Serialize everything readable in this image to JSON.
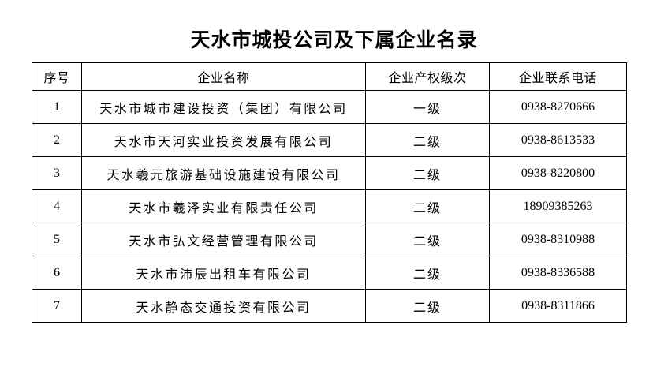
{
  "page": {
    "title": "天水市城投公司及下属企业名录"
  },
  "table": {
    "headers": [
      "序号",
      "企业名称",
      "企业产权级次",
      "企业联系电话"
    ],
    "rows": [
      [
        "1",
        "天水市城市建设投资（集团）有限公司",
        "一级",
        "0938-8270666"
      ],
      [
        "2",
        "天水市天河实业投资发展有限公司",
        "二级",
        "0938-8613533"
      ],
      [
        "3",
        "天水羲元旅游基础设施建设有限公司",
        "二级",
        "0938-8220800"
      ],
      [
        "4",
        "天水市羲泽实业有限责任公司",
        "二级",
        "18909385263"
      ],
      [
        "5",
        "天水市弘文经营管理有限公司",
        "二级",
        "0938-8310988"
      ],
      [
        "6",
        "天水市沛辰出租车有限公司",
        "二级",
        "0938-8336588"
      ],
      [
        "7",
        "天水静态交通投资有限公司",
        "二级",
        "0938-8311866"
      ]
    ]
  }
}
